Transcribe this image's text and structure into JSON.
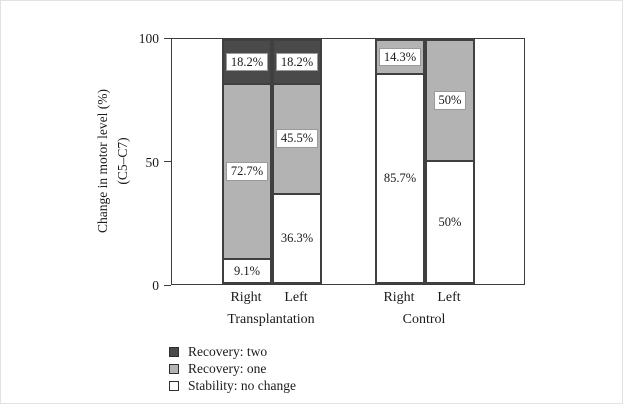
{
  "chart_data": {
    "type": "bar",
    "stacked": true,
    "orientation": "vertical",
    "ylabel_line1": "Change in motor level (%)",
    "ylabel_line2": "(C5–C7)",
    "ylim": [
      0,
      100
    ],
    "grid": false,
    "legend_position": "bottom-left",
    "yticks": [
      {
        "label": "100",
        "value": 100
      },
      {
        "label": "50",
        "value": 50
      },
      {
        "label": "0",
        "value": 0
      }
    ],
    "colors": {
      "Recovery: two": "#4a4a4a",
      "Recovery: one": "#b3b3b3",
      "Stability: no change": "#ffffff"
    },
    "groups": [
      {
        "label": "Transplantation",
        "bars": [
          {
            "label": "Right",
            "segments": [
              {
                "series": "Stability: no change",
                "value": 9.1,
                "text": "9.1%",
                "chip": false
              },
              {
                "series": "Recovery: one",
                "value": 72.7,
                "text": "72.7%",
                "chip": true
              },
              {
                "series": "Recovery: two",
                "value": 18.2,
                "text": "18.2%",
                "chip": true
              }
            ]
          },
          {
            "label": "Left",
            "segments": [
              {
                "series": "Stability: no change",
                "value": 36.3,
                "text": "36.3%",
                "chip": false
              },
              {
                "series": "Recovery: one",
                "value": 45.5,
                "text": "45.5%",
                "chip": true
              },
              {
                "series": "Recovery: two",
                "value": 18.2,
                "text": "18.2%",
                "chip": true
              }
            ]
          }
        ]
      },
      {
        "label": "Control",
        "bars": [
          {
            "label": "Right",
            "segments": [
              {
                "series": "Stability: no change",
                "value": 85.7,
                "text": "85.7%",
                "chip": false
              },
              {
                "series": "Recovery: one",
                "value": 14.3,
                "text": "14.3%",
                "chip": true
              }
            ]
          },
          {
            "label": "Left",
            "segments": [
              {
                "series": "Stability: no change",
                "value": 50,
                "text": "50%",
                "chip": false
              },
              {
                "series": "Recovery: one",
                "value": 50,
                "text": "50%",
                "chip": true
              }
            ]
          }
        ]
      }
    ],
    "legend": [
      {
        "label": "Recovery: two",
        "color": "#4a4a4a"
      },
      {
        "label": "Recovery: one",
        "color": "#b3b3b3"
      },
      {
        "label": "Stability: no change",
        "color": "#ffffff"
      }
    ]
  }
}
